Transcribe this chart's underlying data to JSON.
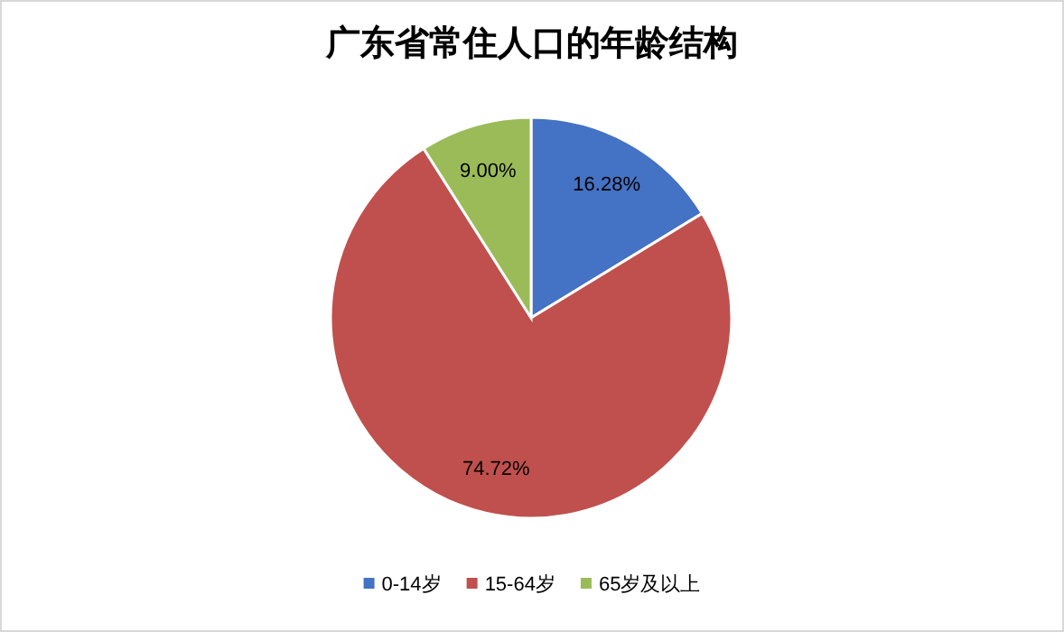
{
  "chart_data": {
    "type": "pie",
    "title": "广东省常住人口的年龄结构",
    "categories": [
      "0-14岁",
      "15-64岁",
      "65岁及以上"
    ],
    "values": [
      16.28,
      74.72,
      9.0
    ],
    "colors": [
      "#4472c4",
      "#c0504d",
      "#9bbb59"
    ],
    "value_labels": [
      "16.28%",
      "74.72%",
      "9.00%"
    ],
    "legend": "bottom"
  }
}
